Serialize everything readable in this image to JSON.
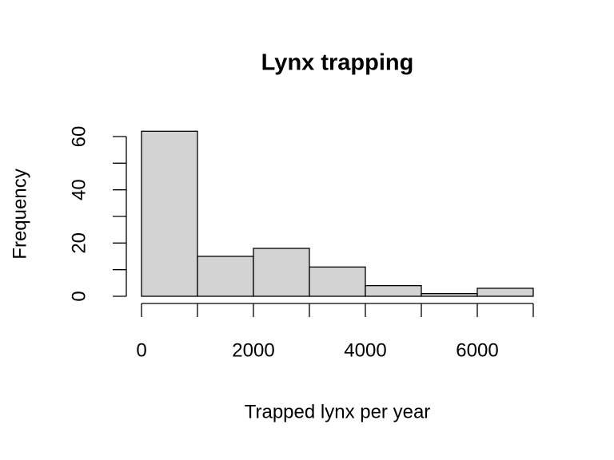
{
  "chart_data": {
    "type": "histogram",
    "title": "Lynx trapping",
    "xlabel": "Trapped lynx per year",
    "ylabel": "Frequency",
    "bins": [
      0,
      1000,
      2000,
      3000,
      4000,
      5000,
      6000,
      7000
    ],
    "values": [
      62,
      15,
      18,
      11,
      4,
      1,
      3
    ],
    "color": "#d3d3d3",
    "xlim": [
      0,
      7000
    ],
    "xticks": [
      0,
      {
        "value": 1000,
        "label": null
      },
      2000,
      {
        "value": 3000,
        "label": null
      },
      4000,
      {
        "value": 5000,
        "label": null
      },
      6000,
      {
        "value": 7000,
        "label": null
      }
    ],
    "ylim": [
      0,
      60
    ],
    "yticks": [
      0,
      {
        "value": 10,
        "label": null
      },
      20,
      {
        "value": 30,
        "label": null
      },
      40,
      {
        "value": 50,
        "label": null
      },
      60
    ]
  }
}
